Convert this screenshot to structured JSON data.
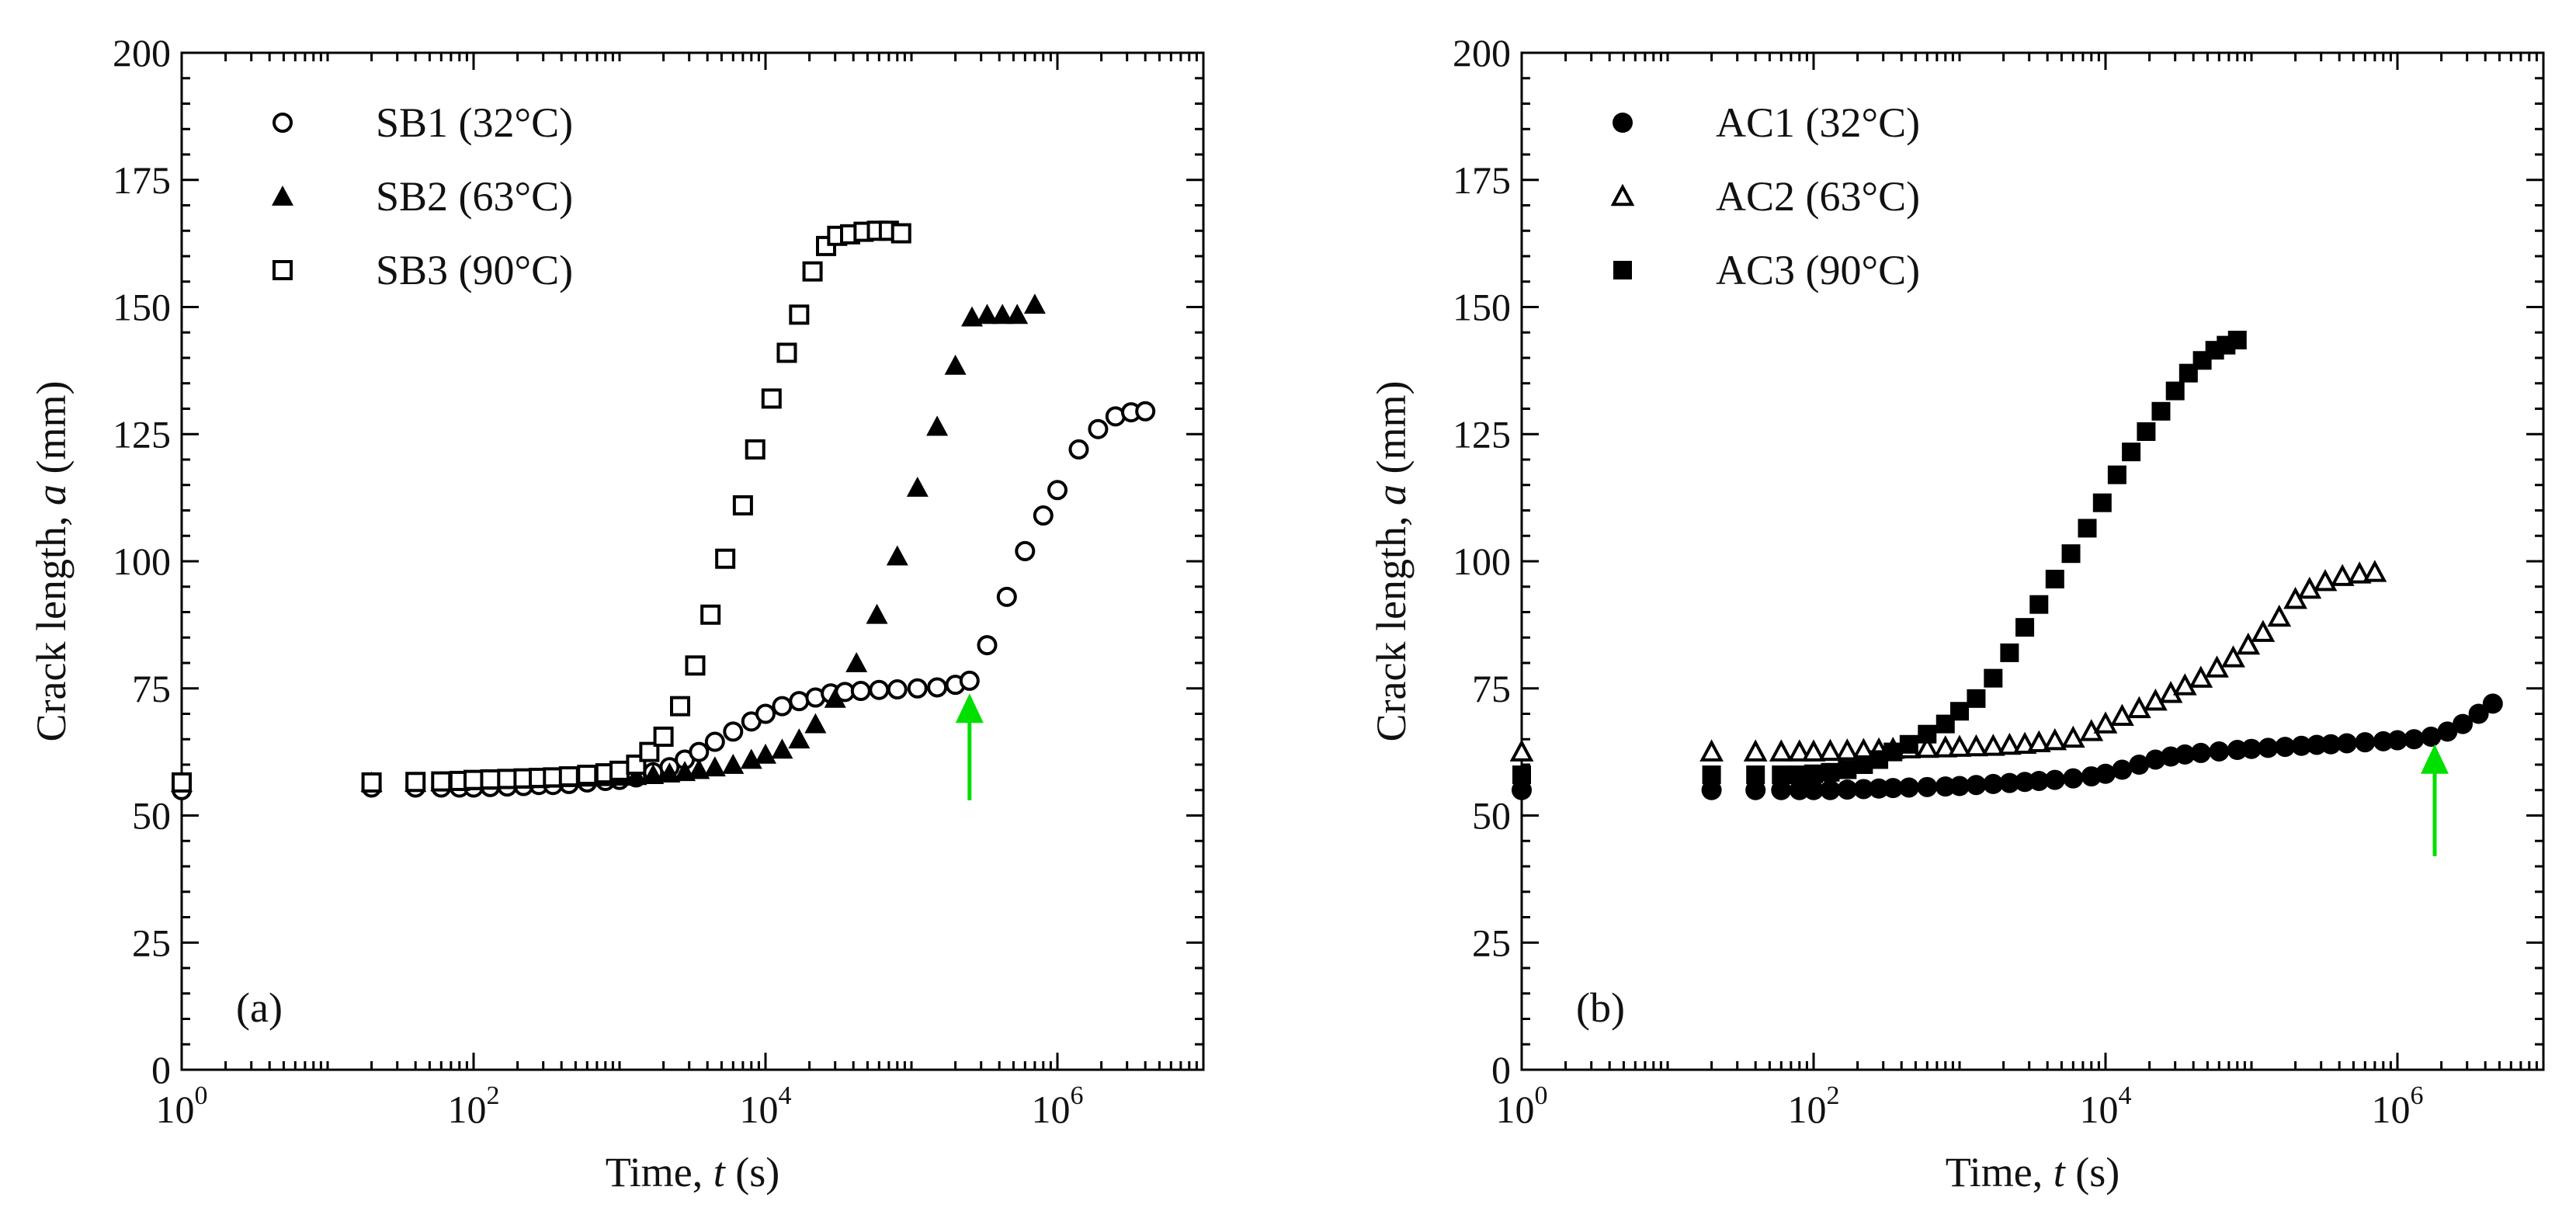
{
  "chart_data": [
    {
      "panel": "(a)",
      "type": "scatter",
      "xscale": "log",
      "xlim": [
        1,
        10000000
      ],
      "ylim": [
        0,
        200
      ],
      "xlabel": "Time, ",
      "xlabel_var": "t",
      "xlabel_unit": " (s)",
      "ylabel": "Crack length, ",
      "ylabel_var": "a",
      "ylabel_unit": " (mm)",
      "xticks": [
        {
          "value": 1,
          "base": "10",
          "exp": "0"
        },
        {
          "value": 100,
          "base": "10",
          "exp": "2"
        },
        {
          "value": 10000,
          "base": "10",
          "exp": "4"
        },
        {
          "value": 1000000,
          "base": "10",
          "exp": "6"
        }
      ],
      "yticks": [
        0,
        25,
        50,
        75,
        100,
        125,
        150,
        175,
        200
      ],
      "legend_position": "top-left",
      "arrow": {
        "x": 250000,
        "y_from": 53,
        "y_to": 74,
        "color": "#00e000"
      },
      "series": [
        {
          "name": "SB1 (32°C)",
          "marker": "circle-open",
          "x": [
            1,
            20,
            40,
            60,
            80,
            100,
            130,
            170,
            220,
            280,
            350,
            450,
            600,
            800,
            1000,
            1300,
            1700,
            2200,
            2800,
            3500,
            4500,
            6000,
            8000,
            10000,
            13000,
            17000,
            22000,
            28000,
            35000,
            45000,
            60000,
            80000,
            110000,
            150000,
            200000,
            250000,
            330000,
            450000,
            600000,
            800000,
            1000000,
            1400000,
            1900000,
            2500000,
            3200000,
            4000000
          ],
          "y": [
            55,
            55.5,
            55.5,
            55.5,
            55.5,
            55.5,
            55.6,
            55.7,
            55.8,
            56,
            56,
            56.2,
            56.5,
            56.8,
            57,
            57.5,
            58.5,
            59.5,
            61,
            62.5,
            64.5,
            66.5,
            68.5,
            70,
            71.5,
            72.5,
            73.2,
            74,
            74.3,
            74.5,
            74.7,
            74.8,
            75,
            75.2,
            75.7,
            76.5,
            83.5,
            93,
            102,
            109,
            114,
            122,
            126,
            128.5,
            129.3,
            129.5
          ]
        },
        {
          "name": "SB2 (63°C)",
          "marker": "triangle-filled",
          "x": [
            1,
            20,
            40,
            60,
            80,
            100,
            130,
            170,
            220,
            280,
            350,
            450,
            600,
            800,
            1000,
            1300,
            1700,
            2200,
            2800,
            3500,
            4500,
            6000,
            8000,
            10000,
            13000,
            17000,
            22000,
            30000,
            42000,
            58000,
            80000,
            110000,
            150000,
            200000,
            260000,
            330000,
            420000,
            530000,
            700000
          ],
          "y": [
            56.5,
            56.5,
            56.5,
            56.6,
            56.7,
            56.8,
            56.9,
            57,
            57.1,
            57.2,
            57.3,
            57.4,
            57.5,
            57.6,
            57.7,
            57.8,
            58,
            58.3,
            58.6,
            59,
            59.5,
            60,
            61,
            62,
            63,
            65,
            68,
            73,
            80,
            89.5,
            101,
            114.5,
            126.5,
            138.5,
            148,
            148.5,
            148.5,
            148.5,
            150.5
          ]
        },
        {
          "name": "SB3 (90°C)",
          "marker": "square-open",
          "x": [
            1,
            20,
            40,
            60,
            80,
            100,
            130,
            170,
            220,
            280,
            350,
            450,
            600,
            800,
            1000,
            1300,
            1600,
            2000,
            2600,
            3300,
            4200,
            5300,
            7000,
            8500,
            11000,
            14000,
            17000,
            21000,
            26000,
            31000,
            38000,
            47000,
            58000,
            70000,
            85000
          ],
          "y": [
            56.5,
            56.5,
            56.6,
            56.7,
            56.8,
            57,
            57.1,
            57.2,
            57.3,
            57.4,
            57.5,
            57.7,
            58,
            58.3,
            58.8,
            60,
            62.5,
            65.5,
            71.5,
            79.5,
            89.5,
            100.5,
            111,
            122,
            132,
            141,
            148.5,
            157,
            162,
            164,
            164.3,
            164.8,
            165,
            165,
            164.5
          ]
        }
      ]
    },
    {
      "panel": "(b)",
      "type": "scatter",
      "xscale": "log",
      "xlim": [
        1,
        10000000
      ],
      "ylim": [
        0,
        200
      ],
      "xlabel": "Time, ",
      "xlabel_var": "t",
      "xlabel_unit": " (s)",
      "ylabel": "Crack length, ",
      "ylabel_var": "a",
      "ylabel_unit": " (mm)",
      "xticks": [
        {
          "value": 1,
          "base": "10",
          "exp": "0"
        },
        {
          "value": 100,
          "base": "10",
          "exp": "2"
        },
        {
          "value": 10000,
          "base": "10",
          "exp": "4"
        },
        {
          "value": 1000000,
          "base": "10",
          "exp": "6"
        }
      ],
      "yticks": [
        0,
        25,
        50,
        75,
        100,
        125,
        150,
        175,
        200
      ],
      "legend_position": "top-left",
      "arrow": {
        "x": 1800000,
        "y_from": 42,
        "y_to": 64,
        "color": "#00e000"
      },
      "series": [
        {
          "name": "AC1 (32°C)",
          "marker": "circle-filled",
          "x": [
            1,
            20,
            40,
            60,
            80,
            100,
            130,
            170,
            220,
            280,
            350,
            450,
            600,
            800,
            1000,
            1300,
            1700,
            2200,
            2800,
            3500,
            4500,
            6000,
            8000,
            10000,
            13000,
            17000,
            22000,
            28000,
            35000,
            45000,
            60000,
            80000,
            100000,
            130000,
            170000,
            220000,
            280000,
            350000,
            450000,
            600000,
            800000,
            1000000,
            1300000,
            1700000,
            2200000,
            2800000,
            3600000,
            4500000
          ],
          "y": [
            55,
            55,
            55,
            55,
            55,
            55,
            55,
            55.1,
            55.2,
            55.3,
            55.4,
            55.5,
            55.6,
            55.7,
            55.8,
            56,
            56.2,
            56.4,
            56.6,
            56.8,
            57,
            57.3,
            57.7,
            58.2,
            59,
            60,
            61,
            61.6,
            62,
            62.3,
            62.6,
            62.9,
            63.1,
            63.3,
            63.5,
            63.7,
            63.9,
            64,
            64.2,
            64.4,
            64.6,
            64.8,
            65,
            65.5,
            66.5,
            68,
            70,
            72
          ]
        },
        {
          "name": "AC2 (63°C)",
          "marker": "triangle-open",
          "x": [
            1,
            20,
            40,
            60,
            80,
            100,
            130,
            170,
            220,
            280,
            350,
            450,
            600,
            800,
            1000,
            1300,
            1700,
            2200,
            2800,
            3500,
            4500,
            6000,
            8000,
            10000,
            13000,
            17000,
            22000,
            28000,
            35000,
            45000,
            58000,
            75000,
            95000,
            120000,
            155000,
            200000,
            250000,
            320000,
            420000,
            550000,
            700000
          ],
          "y": [
            62.5,
            62.5,
            62.5,
            62.5,
            62.5,
            62.5,
            62.6,
            62.7,
            62.8,
            62.9,
            63,
            63.1,
            63.2,
            63.3,
            63.4,
            63.5,
            63.6,
            63.8,
            64,
            64.3,
            64.7,
            65.2,
            66.5,
            68,
            69.5,
            71,
            72.5,
            74,
            75.5,
            77,
            79,
            81,
            83.5,
            86,
            89,
            92.5,
            94.5,
            96,
            97,
            97.5,
            97.8
          ]
        },
        {
          "name": "AC3 (90°C)",
          "marker": "square-filled",
          "x": [
            1,
            20,
            40,
            60,
            80,
            100,
            130,
            170,
            220,
            280,
            350,
            450,
            600,
            800,
            1000,
            1300,
            1700,
            2200,
            2800,
            3500,
            4500,
            5800,
            7500,
            9500,
            12000,
            15000,
            19000,
            24000,
            30000,
            37000,
            46000,
            56000,
            67000,
            80000
          ],
          "y": [
            58,
            58,
            58,
            58,
            58,
            58.2,
            58.5,
            59,
            60,
            61,
            62.5,
            64,
            66,
            68,
            70.5,
            73,
            77,
            82,
            87,
            91.5,
            96.5,
            101.5,
            106.5,
            111.5,
            117,
            121.5,
            125.5,
            129.5,
            133.5,
            137,
            139.5,
            141.5,
            142.5,
            143.5
          ]
        }
      ]
    }
  ]
}
